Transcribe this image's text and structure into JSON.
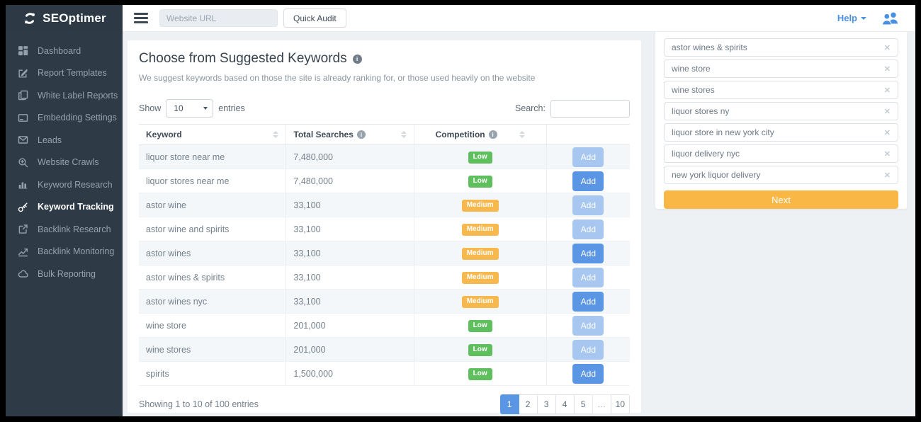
{
  "header": {
    "logo_text": "SEOptimer",
    "url_placeholder": "Website URL",
    "quick_audit_label": "Quick Audit",
    "help_label": "Help"
  },
  "sidebar": {
    "items": [
      {
        "id": "dashboard",
        "label": "Dashboard",
        "icon": "dashboard-icon",
        "active": false
      },
      {
        "id": "report-templates",
        "label": "Report Templates",
        "icon": "report-templates-icon",
        "active": false
      },
      {
        "id": "white-label-reports",
        "label": "White Label Reports",
        "icon": "white-label-reports-icon",
        "active": false
      },
      {
        "id": "embedding-settings",
        "label": "Embedding Settings",
        "icon": "embedding-settings-icon",
        "active": false
      },
      {
        "id": "leads",
        "label": "Leads",
        "icon": "leads-icon",
        "active": false
      },
      {
        "id": "website-crawls",
        "label": "Website Crawls",
        "icon": "website-crawls-icon",
        "active": false
      },
      {
        "id": "keyword-research",
        "label": "Keyword Research",
        "icon": "keyword-research-icon",
        "active": false
      },
      {
        "id": "keyword-tracking",
        "label": "Keyword Tracking",
        "icon": "keyword-tracking-icon",
        "active": true
      },
      {
        "id": "backlink-research",
        "label": "Backlink Research",
        "icon": "backlink-research-icon",
        "active": false
      },
      {
        "id": "backlink-monitoring",
        "label": "Backlink Monitoring",
        "icon": "backlink-monitoring-icon",
        "active": false
      },
      {
        "id": "bulk-reporting",
        "label": "Bulk Reporting",
        "icon": "bulk-reporting-icon",
        "active": false
      }
    ]
  },
  "main": {
    "title": "Choose from Suggested Keywords",
    "subtitle": "We suggest keywords based on those the site is already ranking for, or those used heavily on the website",
    "controls": {
      "show_label": "Show",
      "page_size": "10",
      "entries_label": "entries",
      "search_label": "Search:",
      "search_value": ""
    },
    "table": {
      "columns": [
        {
          "label": "Keyword",
          "info": false,
          "align": "left"
        },
        {
          "label": "Total Searches",
          "info": true,
          "align": "left"
        },
        {
          "label": "Competition",
          "info": true,
          "align": "center"
        },
        {
          "label": "",
          "info": false,
          "align": "left"
        }
      ],
      "add_label": "Add",
      "rows": [
        {
          "keyword": "liquor store near me",
          "total_searches": "7,480,000",
          "competition": "Low",
          "add_state": "muted"
        },
        {
          "keyword": "liquor stores near me",
          "total_searches": "7,480,000",
          "competition": "Low",
          "add_state": "normal"
        },
        {
          "keyword": "astor wine",
          "total_searches": "33,100",
          "competition": "Medium",
          "add_state": "muted"
        },
        {
          "keyword": "astor wine and spirits",
          "total_searches": "33,100",
          "competition": "Medium",
          "add_state": "muted"
        },
        {
          "keyword": "astor wines",
          "total_searches": "33,100",
          "competition": "Medium",
          "add_state": "normal"
        },
        {
          "keyword": "astor wines & spirits",
          "total_searches": "33,100",
          "competition": "Medium",
          "add_state": "muted"
        },
        {
          "keyword": "astor wines nyc",
          "total_searches": "33,100",
          "competition": "Medium",
          "add_state": "normal"
        },
        {
          "keyword": "wine store",
          "total_searches": "201,000",
          "competition": "Low",
          "add_state": "muted"
        },
        {
          "keyword": "wine stores",
          "total_searches": "201,000",
          "competition": "Low",
          "add_state": "muted"
        },
        {
          "keyword": "spirits",
          "total_searches": "1,500,000",
          "competition": "Low",
          "add_state": "normal"
        }
      ]
    },
    "footer": {
      "showing_text": "Showing 1 to 10 of 100 entries",
      "pages": [
        "1",
        "2",
        "3",
        "4",
        "5",
        "…",
        "10"
      ],
      "active_page": "1"
    }
  },
  "selected_panel": {
    "keywords": [
      "astor wines & spirits",
      "wine store",
      "wine stores",
      "liquor stores ny",
      "liquor store in new york city",
      "liquor delivery nyc",
      "new york liquor delivery"
    ],
    "next_label": "Next"
  },
  "colors": {
    "accent_blue": "#4a90e2",
    "add_blue": "#5a96e4",
    "add_blue_muted": "#a8c7f0",
    "competition_low_green": "#5fbf5f",
    "competition_medium_orange": "#f7b84e",
    "next_orange": "#f9b845",
    "sidebar_bg": "#2e3b47"
  }
}
